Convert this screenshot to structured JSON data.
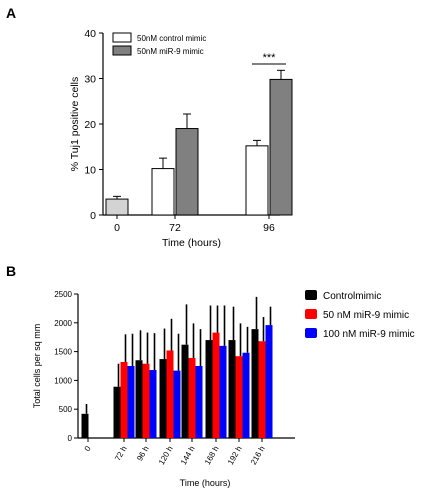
{
  "chart_data": [
    {
      "panel": "A",
      "type": "bar",
      "title": "",
      "xlabel": "Time (hours)",
      "ylabel": "% Tuj1 positive cells",
      "ylim": [
        0,
        40
      ],
      "yticks": [
        0,
        10,
        20,
        30,
        40
      ],
      "categories": [
        "0",
        "72",
        "96"
      ],
      "series": [
        {
          "name": "",
          "color": "#d3d3d3",
          "points": [
            {
              "category": "0",
              "value": 3.5,
              "error": 0.6
            }
          ]
        },
        {
          "name": "50nM control mimic",
          "color": "#ffffff",
          "points": [
            {
              "category": "72",
              "value": 10.2,
              "error": 2.3
            },
            {
              "category": "96",
              "value": 15.2,
              "error": 1.2
            }
          ]
        },
        {
          "name": "50nM miR-9 mimic",
          "color": "#808080",
          "points": [
            {
              "category": "72",
              "value": 19.0,
              "error": 3.2
            },
            {
              "category": "96",
              "value": 29.8,
              "error": 2.0
            }
          ]
        }
      ],
      "annotations": [
        {
          "text": "***",
          "between": [
            "96"
          ]
        }
      ],
      "legend_position": "top-left",
      "grid": false
    },
    {
      "panel": "B",
      "type": "bar",
      "title": "",
      "xlabel": "Time (hours)",
      "ylabel": "Total cells per sq mm",
      "ylim": [
        0,
        2500
      ],
      "yticks": [
        0,
        500,
        1000,
        1500,
        2000,
        2500
      ],
      "categories": [
        "0",
        "72 h",
        "96 h",
        "120 h",
        "144 h",
        "168 h",
        "192 h",
        "216 h"
      ],
      "series": [
        {
          "name": "Controlmimic",
          "color": "#000000",
          "values": [
            420,
            890,
            1350,
            1370,
            1620,
            1700,
            1700,
            1890
          ],
          "errors": [
            170,
            400,
            520,
            530,
            700,
            600,
            580,
            560
          ]
        },
        {
          "name": "50 nM miR-9 mimic",
          "color": "#ff0000",
          "values": [
            null,
            1320,
            1290,
            1520,
            1390,
            1830,
            1420,
            1680
          ],
          "errors": [
            null,
            480,
            540,
            550,
            600,
            470,
            570,
            420
          ]
        },
        {
          "name": "100 nM miR-9 mimic",
          "color": "#0000ff",
          "values": [
            null,
            1250,
            1180,
            1170,
            1250,
            1600,
            1480,
            1960
          ],
          "errors": [
            null,
            560,
            640,
            640,
            640,
            700,
            450,
            320
          ]
        }
      ],
      "legend_position": "right",
      "grid": false
    }
  ]
}
